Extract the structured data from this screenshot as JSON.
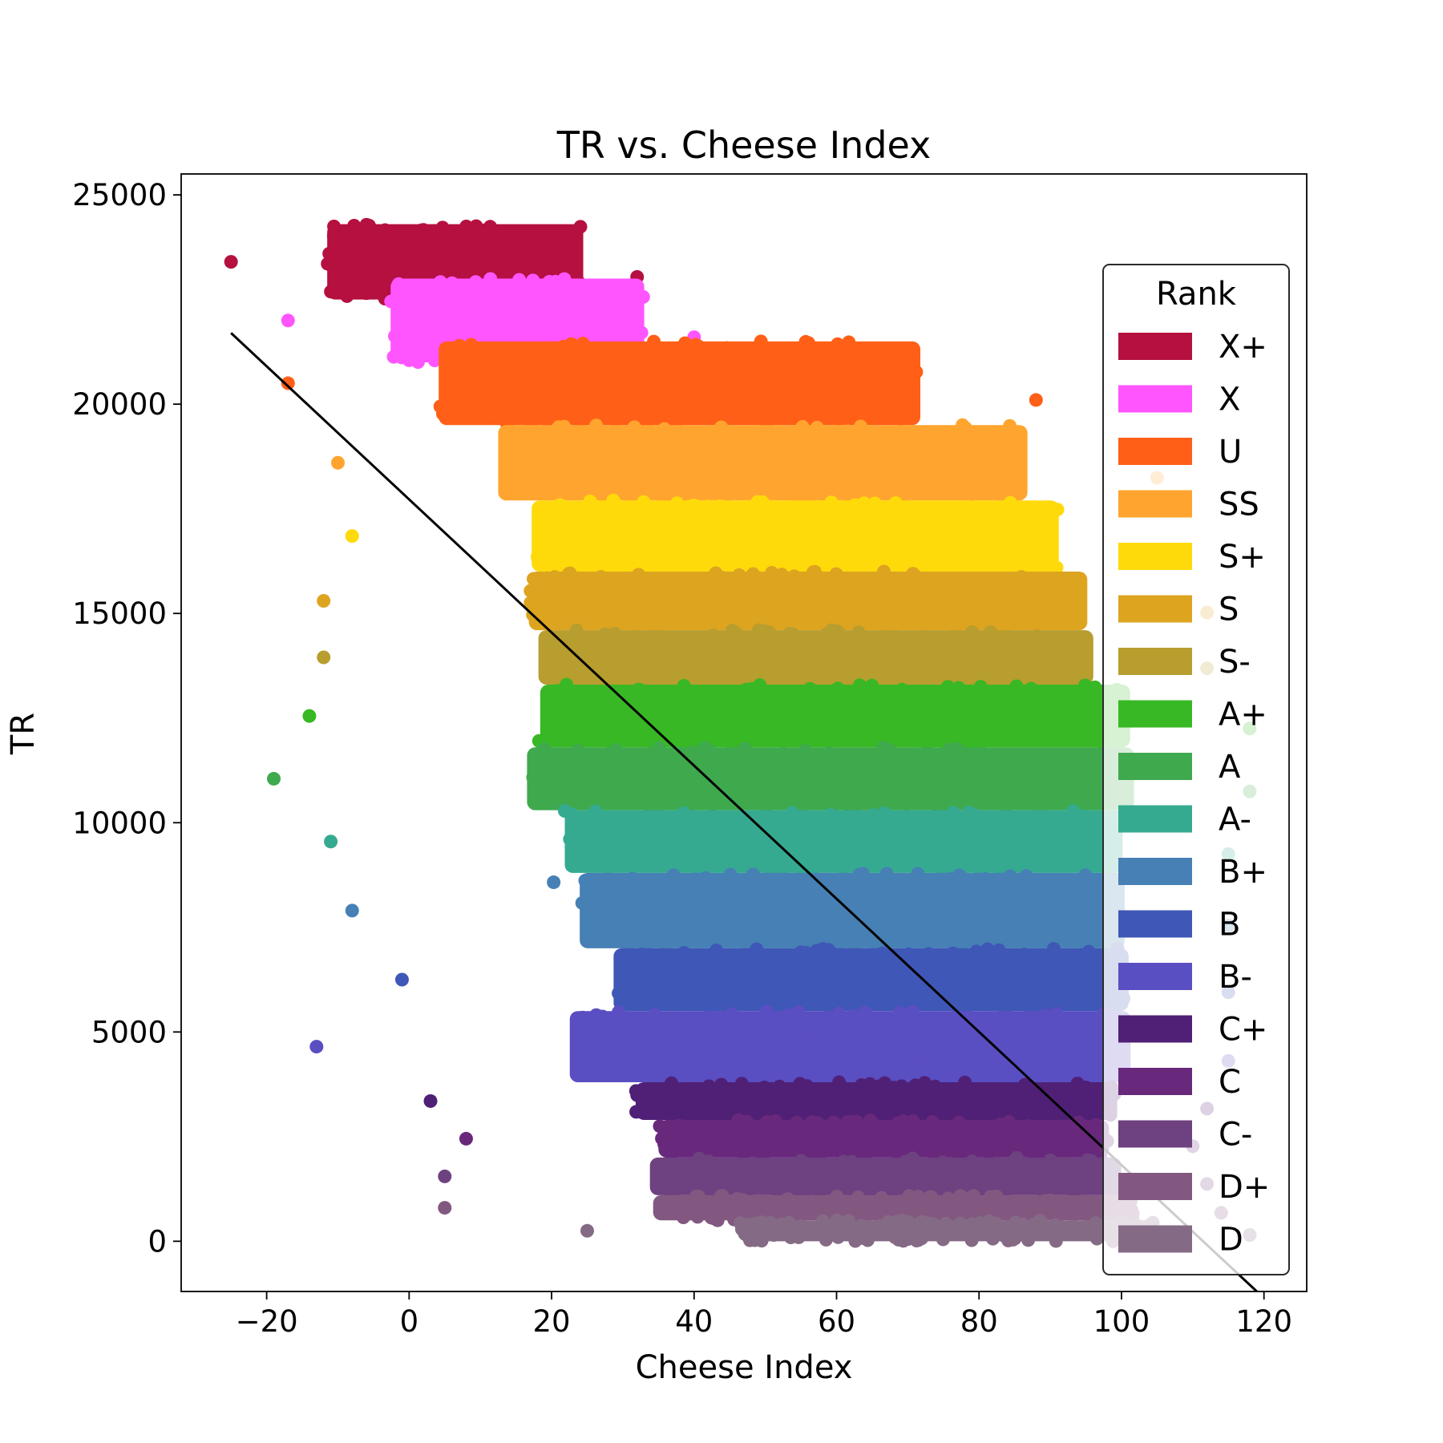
{
  "chart_data": {
    "type": "scatter",
    "title": "TR vs. Cheese Index",
    "xlabel": "Cheese Index",
    "ylabel": "TR",
    "xlim": [
      -32,
      126
    ],
    "ylim": [
      -1200,
      25500
    ],
    "xticks": [
      {
        "value": -20,
        "label": "−20"
      },
      {
        "value": 0,
        "label": "0"
      },
      {
        "value": 20,
        "label": "20"
      },
      {
        "value": 40,
        "label": "40"
      },
      {
        "value": 60,
        "label": "60"
      },
      {
        "value": 80,
        "label": "80"
      },
      {
        "value": 100,
        "label": "100"
      },
      {
        "value": 120,
        "label": "120"
      }
    ],
    "yticks": [
      {
        "value": 0,
        "label": "0"
      },
      {
        "value": 5000,
        "label": "5000"
      },
      {
        "value": 10000,
        "label": "10000"
      },
      {
        "value": 15000,
        "label": "15000"
      },
      {
        "value": 20000,
        "label": "20000"
      },
      {
        "value": 25000,
        "label": "25000"
      }
    ],
    "grid": false,
    "legend": {
      "title": "Rank",
      "position": "right"
    },
    "series": [
      {
        "name": "X+",
        "color": "#b5103f",
        "tr_range": [
          22500,
          24300
        ],
        "ci_range": [
          -25,
          32
        ],
        "ci_center": 5
      },
      {
        "name": "X",
        "color": "#ff55ff",
        "tr_range": [
          21000,
          23000
        ],
        "ci_range": [
          -17,
          40
        ],
        "ci_center": 15
      },
      {
        "name": "U",
        "color": "#ff5f17",
        "tr_range": [
          19500,
          21500
        ],
        "ci_range": [
          -17,
          88
        ],
        "ci_center": 30
      },
      {
        "name": "SS",
        "color": "#ffa52f",
        "tr_range": [
          17700,
          19500
        ],
        "ci_range": [
          -10,
          105
        ],
        "ci_center": 40
      },
      {
        "name": "S+",
        "color": "#ffda0b",
        "tr_range": [
          16000,
          17700
        ],
        "ci_range": [
          -8,
          108
        ],
        "ci_center": 48
      },
      {
        "name": "S",
        "color": "#dda41f",
        "tr_range": [
          14600,
          16000
        ],
        "ci_range": [
          -12,
          112
        ],
        "ci_center": 52
      },
      {
        "name": "S-",
        "color": "#b89d2f",
        "tr_range": [
          13300,
          14600
        ],
        "ci_range": [
          -12,
          112
        ],
        "ci_center": 55
      },
      {
        "name": "A+",
        "color": "#38b825",
        "tr_range": [
          11800,
          13300
        ],
        "ci_range": [
          -14,
          118
        ],
        "ci_center": 58
      },
      {
        "name": "A",
        "color": "#3fa94e",
        "tr_range": [
          10300,
          11800
        ],
        "ci_range": [
          -19,
          118
        ],
        "ci_center": 60
      },
      {
        "name": "A-",
        "color": "#35aa90",
        "tr_range": [
          8800,
          10300
        ],
        "ci_range": [
          -11,
          115
        ],
        "ci_center": 62
      },
      {
        "name": "B+",
        "color": "#4680b5",
        "tr_range": [
          7000,
          8800
        ],
        "ci_range": [
          -8,
          115
        ],
        "ci_center": 63
      },
      {
        "name": "B",
        "color": "#3f57b6",
        "tr_range": [
          5500,
          7000
        ],
        "ci_range": [
          -1,
          115
        ],
        "ci_center": 65
      },
      {
        "name": "B-",
        "color": "#5a4ec3",
        "tr_range": [
          3800,
          5500
        ],
        "ci_range": [
          -13,
          115
        ],
        "ci_center": 66
      },
      {
        "name": "C+",
        "color": "#4f2076",
        "tr_range": [
          2900,
          3800
        ],
        "ci_range": [
          3,
          112
        ],
        "ci_center": 67
      },
      {
        "name": "C",
        "color": "#68287c",
        "tr_range": [
          2000,
          2900
        ],
        "ci_range": [
          8,
          110
        ],
        "ci_center": 68
      },
      {
        "name": "C-",
        "color": "#6e4180",
        "tr_range": [
          1100,
          2000
        ],
        "ci_range": [
          5,
          112
        ],
        "ci_center": 69
      },
      {
        "name": "D+",
        "color": "#825881",
        "tr_range": [
          500,
          1100
        ],
        "ci_range": [
          5,
          114
        ],
        "ci_center": 70
      },
      {
        "name": "D",
        "color": "#856a85",
        "tr_range": [
          0,
          500
        ],
        "ci_range": [
          25,
          118
        ],
        "ci_center": 72
      }
    ],
    "trendline": {
      "color": "#000000",
      "x": [
        -25,
        119
      ],
      "y": [
        21700,
        -1200
      ]
    }
  }
}
